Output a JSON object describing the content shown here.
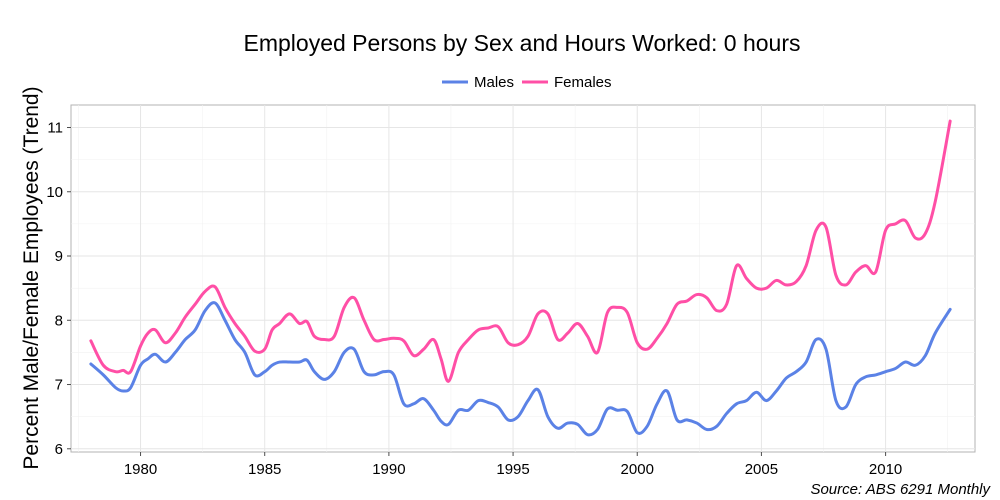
{
  "chart_data": {
    "type": "line",
    "title": "Employed Persons by Sex and Hours Worked: 0 hours",
    "xlabel": "",
    "ylabel": "Percent Male/Female Employees (Trend)",
    "caption": "Source: ABS 6291 Monthly",
    "xlim": [
      1977.2,
      2013.6
    ],
    "ylim": [
      5.95,
      11.35
    ],
    "x_ticks": [
      1980,
      1985,
      1990,
      1995,
      2000,
      2005,
      2010
    ],
    "y_ticks": [
      6,
      7,
      8,
      9,
      10,
      11
    ],
    "grid": true,
    "legend_position": "top",
    "series": [
      {
        "name": "Males",
        "color": "#5b82e6",
        "x": [
          1978.0,
          1978.5,
          1979.0,
          1979.3,
          1979.6,
          1980.0,
          1980.3,
          1980.6,
          1981.0,
          1981.4,
          1981.8,
          1982.2,
          1982.6,
          1983.0,
          1983.4,
          1983.8,
          1984.2,
          1984.6,
          1985.0,
          1985.3,
          1985.6,
          1986.0,
          1986.4,
          1986.7,
          1987.0,
          1987.4,
          1987.8,
          1988.2,
          1988.6,
          1989.0,
          1989.4,
          1989.8,
          1990.2,
          1990.6,
          1991.0,
          1991.4,
          1991.8,
          1992.1,
          1992.4,
          1992.8,
          1993.2,
          1993.6,
          1994.0,
          1994.4,
          1994.8,
          1995.2,
          1995.6,
          1996.0,
          1996.4,
          1996.8,
          1997.2,
          1997.6,
          1998.0,
          1998.4,
          1998.8,
          1999.2,
          1999.6,
          2000.0,
          2000.4,
          2000.8,
          2001.2,
          2001.6,
          2002.0,
          2002.4,
          2002.8,
          2003.2,
          2003.6,
          2004.0,
          2004.4,
          2004.8,
          2005.2,
          2005.6,
          2006.0,
          2006.4,
          2006.8,
          2007.2,
          2007.6,
          2008.0,
          2008.4,
          2008.8,
          2009.2,
          2009.6,
          2010.0,
          2010.4,
          2010.8,
          2011.2,
          2011.6,
          2012.0,
          2012.6
        ],
        "values": [
          7.32,
          7.15,
          6.95,
          6.9,
          6.95,
          7.3,
          7.4,
          7.47,
          7.35,
          7.5,
          7.7,
          7.85,
          8.15,
          8.27,
          8.0,
          7.7,
          7.5,
          7.15,
          7.2,
          7.3,
          7.35,
          7.35,
          7.35,
          7.38,
          7.2,
          7.08,
          7.2,
          7.5,
          7.55,
          7.2,
          7.15,
          7.2,
          7.15,
          6.7,
          6.7,
          6.78,
          6.6,
          6.43,
          6.38,
          6.6,
          6.6,
          6.75,
          6.72,
          6.65,
          6.45,
          6.5,
          6.75,
          6.92,
          6.5,
          6.32,
          6.4,
          6.38,
          6.22,
          6.3,
          6.62,
          6.6,
          6.58,
          6.25,
          6.35,
          6.7,
          6.9,
          6.45,
          6.45,
          6.4,
          6.3,
          6.35,
          6.55,
          6.7,
          6.75,
          6.88,
          6.75,
          6.9,
          7.1,
          7.2,
          7.35,
          7.7,
          7.55,
          6.75,
          6.65,
          7.0,
          7.12,
          7.15,
          7.2,
          7.25,
          7.35,
          7.3,
          7.45,
          7.8,
          8.17
        ]
      },
      {
        "name": "Females",
        "color": "#ff4fa6",
        "x": [
          1978.0,
          1978.5,
          1979.0,
          1979.3,
          1979.6,
          1980.0,
          1980.3,
          1980.6,
          1981.0,
          1981.4,
          1981.8,
          1982.2,
          1982.6,
          1983.0,
          1983.4,
          1983.8,
          1984.2,
          1984.6,
          1985.0,
          1985.3,
          1985.6,
          1986.0,
          1986.4,
          1986.7,
          1987.0,
          1987.4,
          1987.8,
          1988.2,
          1988.6,
          1989.0,
          1989.4,
          1989.8,
          1990.2,
          1990.6,
          1991.0,
          1991.4,
          1991.8,
          1992.1,
          1992.4,
          1992.8,
          1993.2,
          1993.6,
          1994.0,
          1994.4,
          1994.8,
          1995.2,
          1995.6,
          1996.0,
          1996.4,
          1996.8,
          1997.2,
          1997.6,
          1998.0,
          1998.4,
          1998.8,
          1999.2,
          1999.6,
          2000.0,
          2000.4,
          2000.8,
          2001.2,
          2001.6,
          2002.0,
          2002.4,
          2002.8,
          2003.2,
          2003.6,
          2004.0,
          2004.4,
          2004.8,
          2005.2,
          2005.6,
          2006.0,
          2006.4,
          2006.8,
          2007.2,
          2007.6,
          2008.0,
          2008.4,
          2008.8,
          2009.2,
          2009.6,
          2010.0,
          2010.4,
          2010.8,
          2011.2,
          2011.6,
          2012.0,
          2012.6
        ],
        "values": [
          7.68,
          7.3,
          7.2,
          7.22,
          7.2,
          7.6,
          7.8,
          7.85,
          7.65,
          7.8,
          8.05,
          8.25,
          8.45,
          8.52,
          8.2,
          7.95,
          7.75,
          7.52,
          7.55,
          7.85,
          7.95,
          8.1,
          7.95,
          7.98,
          7.75,
          7.7,
          7.75,
          8.2,
          8.35,
          8.0,
          7.7,
          7.7,
          7.72,
          7.68,
          7.45,
          7.55,
          7.7,
          7.4,
          7.05,
          7.5,
          7.7,
          7.85,
          7.88,
          7.9,
          7.65,
          7.62,
          7.75,
          8.1,
          8.1,
          7.7,
          7.8,
          7.95,
          7.75,
          7.5,
          8.12,
          8.2,
          8.12,
          7.65,
          7.55,
          7.72,
          7.95,
          8.25,
          8.3,
          8.4,
          8.35,
          8.15,
          8.25,
          8.85,
          8.65,
          8.5,
          8.5,
          8.62,
          8.55,
          8.6,
          8.85,
          9.4,
          9.45,
          8.7,
          8.55,
          8.75,
          8.85,
          8.75,
          9.4,
          9.5,
          9.55,
          9.28,
          9.35,
          9.85,
          11.1
        ]
      }
    ]
  }
}
